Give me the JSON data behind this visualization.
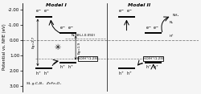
{
  "title_model1": "Model I",
  "title_model2": "Model II",
  "ylabel": "Potential vs. NHE (eV)",
  "y_ticks": [
    -2.0,
    -1.0,
    0.0,
    1.0,
    2.0,
    3.0
  ],
  "ylim": [
    3.35,
    -2.45
  ],
  "xlim": [
    0,
    10.2
  ],
  "xlabel_left": "SL g-C₃N₄   ZnFe₂O₄",
  "m1_gcn_CB": -1.55,
  "m1_gcn_VB": 1.85,
  "m1_gcn_x1": 0.75,
  "m1_gcn_x2": 1.75,
  "m1_znfe_CB": -0.45,
  "m1_znfe_VB": 1.45,
  "m1_znfe_x1": 2.15,
  "m1_znfe_x2": 3.15,
  "m2_gcn_CB": -1.55,
  "m2_gcn_VB": 1.85,
  "m2_gcn_x1": 5.55,
  "m2_gcn_x2": 6.55,
  "m2_znfe_CB": -0.45,
  "m2_znfe_VB": 1.45,
  "m2_znfe_x1": 7.1,
  "m2_znfe_x2": 8.1,
  "NHE_line": 0.0,
  "H2O_line": 1.23,
  "N2NH3_line": -0.092,
  "sep_x": 4.9,
  "bg_color": "#f5f5f5",
  "band_color": "#000000"
}
